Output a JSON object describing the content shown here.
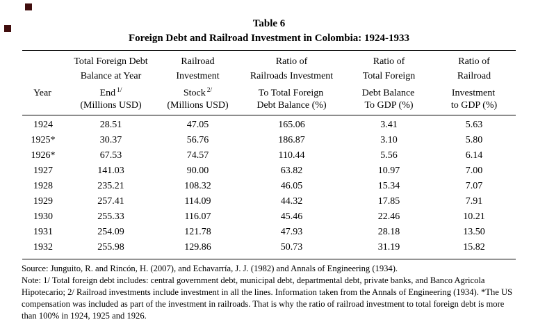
{
  "title": {
    "label": "Table 6",
    "caption": "Foreign Debt and Railroad Investment in Colombia: 1924-1933"
  },
  "table": {
    "header": [
      {
        "l1": "",
        "l2": "",
        "l3": "Year",
        "l3sup": "",
        "l4": ""
      },
      {
        "l1": "Total Foreign Debt",
        "l2": "Balance at Year",
        "l3": "End",
        "l3sup": "1/",
        "l4": "(Millions USD)"
      },
      {
        "l1": "Railroad",
        "l2": "Investment",
        "l3": "Stock",
        "l3sup": "2/",
        "l4": "(Millions USD)"
      },
      {
        "l1": "Ratio of",
        "l2": "Railroads Investment",
        "l3": "To Total Foreign",
        "l3sup": "",
        "l4": "Debt Balance (%)"
      },
      {
        "l1": "Ratio of",
        "l2": "Total Foreign",
        "l3": "Debt Balance",
        "l3sup": "",
        "l4": "To GDP (%)"
      },
      {
        "l1": "Ratio of",
        "l2": "Railroad",
        "l3": "Investment",
        "l3sup": "",
        "l4": "to GDP (%)"
      }
    ]
  },
  "chart_data": {
    "type": "table",
    "title": "Table 6: Foreign Debt and Railroad Investment in Colombia: 1924-1933",
    "columns": [
      "Year",
      "Total Foreign Debt Balance at Year End 1/ (Millions USD)",
      "Railroad Investment Stock 2/ (Millions USD)",
      "Ratio of Railroads Investment To Total Foreign Debt Balance (%)",
      "Ratio of Total Foreign Debt Balance To GDP (%)",
      "Ratio of Railroad Investment to GDP (%)"
    ],
    "rows": [
      [
        "1924",
        "28.51",
        "47.05",
        "165.06",
        "3.41",
        "5.63"
      ],
      [
        "1925*",
        "30.37",
        "56.76",
        "186.87",
        "3.10",
        "5.80"
      ],
      [
        "1926*",
        "67.53",
        "74.57",
        "110.44",
        "5.56",
        "6.14"
      ],
      [
        "1927",
        "141.03",
        "90.00",
        "63.82",
        "10.97",
        "7.00"
      ],
      [
        "1928",
        "235.21",
        "108.32",
        "46.05",
        "15.34",
        "7.07"
      ],
      [
        "1929",
        "257.41",
        "114.09",
        "44.32",
        "17.85",
        "7.91"
      ],
      [
        "1930",
        "255.33",
        "116.07",
        "45.46",
        "22.46",
        "10.21"
      ],
      [
        "1931",
        "254.09",
        "121.78",
        "47.93",
        "28.18",
        "13.50"
      ],
      [
        "1932",
        "255.98",
        "129.86",
        "50.73",
        "31.19",
        "15.82"
      ]
    ]
  },
  "notes": {
    "source": "Source: Junguito, R. and Rincón, H. (2007), and Echavarría, J. J. (1982) and Annals of Engineering (1934).",
    "note": "Note: 1/ Total foreign debt includes: central government debt, municipal debt, departmental debt, private banks, and Banco Agricola Hipotecario; 2/ Railroad investments include investment in all the lines. Information taken from the Annals of Engineering (1934). *The US compensation was included as part of the investment in railroads. That is why the ratio of railroad investment to total foreign debt is more than 100% in 1924, 1925 and 1926."
  }
}
